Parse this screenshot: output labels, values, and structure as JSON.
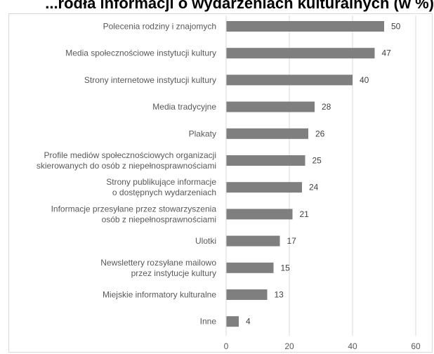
{
  "title": "...ródła informacji o wydarzeniach kulturalnych (w %)",
  "chart_data": {
    "type": "bar",
    "orientation": "horizontal",
    "categories": [
      [
        "Polecenia rodziny i znajomych"
      ],
      [
        "Media społecznościowe instytucji kultury"
      ],
      [
        "Strony internetowe instytucji kultury"
      ],
      [
        "Media tradycyjne"
      ],
      [
        "Plakaty"
      ],
      [
        "Profile mediów społecznościowych organizacji",
        "skierowanych do osób z niepełnosprawnościami"
      ],
      [
        "Strony publikujące informacje",
        "o dostępnych wydarzeniach"
      ],
      [
        "Informacje przesyłane przez stowarzyszenia",
        "osób z niepełnosprawnościami"
      ],
      [
        "Ulotki"
      ],
      [
        "Newslettery rozsyłane mailowo",
        "przez instytucje kultury"
      ],
      [
        "Miejskie informatory kulturalne"
      ],
      [
        "Inne"
      ]
    ],
    "values": [
      50,
      47,
      40,
      28,
      26,
      25,
      24,
      21,
      17,
      15,
      13,
      4
    ],
    "xlim": [
      0,
      60
    ],
    "ticks": [
      0,
      20,
      40,
      60
    ],
    "grid": true,
    "bar_color": "#7f7f7f",
    "grid_color": "#d9d9d9"
  }
}
